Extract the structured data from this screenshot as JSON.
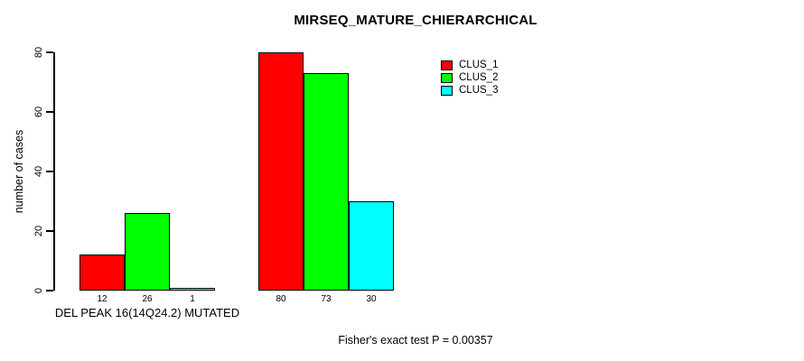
{
  "page": {
    "title": "MIRSEQ_MATURE_CHIERARCHICAL",
    "footer": "Fisher's exact test P = 0.00357"
  },
  "chart_data": {
    "type": "bar",
    "title": "MIRSEQ_MATURE_CHIERARCHICAL",
    "xlabel": "",
    "ylabel": "number of cases",
    "ylim": [
      0,
      80
    ],
    "yticks": [
      0,
      20,
      40,
      60,
      80
    ],
    "grid": false,
    "legend_position": "top-right",
    "background_color": "#ffffff",
    "bar_border_color": "#000000",
    "series": [
      {
        "name": "CLUS_1",
        "color": "#ff0000"
      },
      {
        "name": "CLUS_2",
        "color": "#00ff00"
      },
      {
        "name": "CLUS_3",
        "color": "#00ffff"
      }
    ],
    "groups": [
      {
        "label": "DEL PEAK 16(14Q24.2) MUTATED",
        "values": [
          12,
          26,
          1
        ]
      },
      {
        "label": "",
        "values": [
          80,
          73,
          30
        ]
      }
    ],
    "bar_value_labels": [
      [
        "12",
        "26",
        "1"
      ],
      [
        "80",
        "73",
        "30"
      ]
    ],
    "annotation": "Fisher's exact test P = 0.00357"
  }
}
